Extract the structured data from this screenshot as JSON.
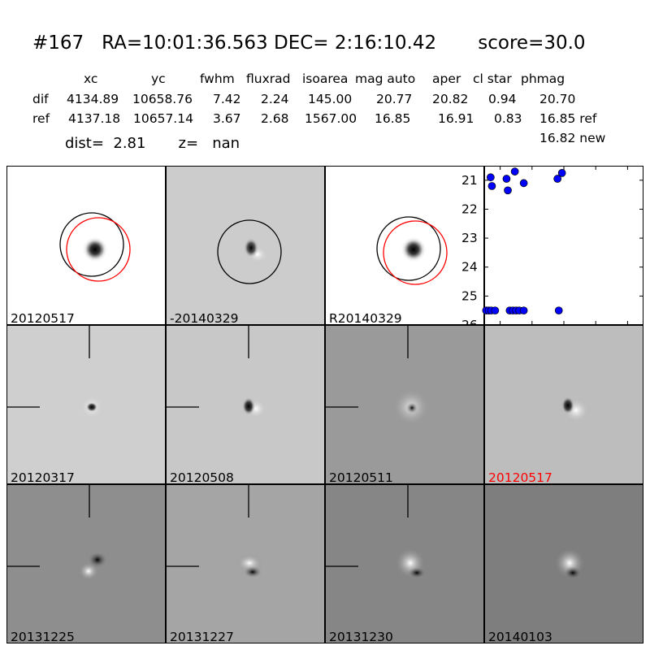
{
  "header": {
    "title": "#167   RA=10:01:36.563 DEC= 2:16:10.42       score=30.0",
    "columns": [
      "xc",
      "yc",
      "fwhm",
      "fluxrad",
      "isoarea",
      "mag auto",
      "aper",
      "cl star",
      "phmag"
    ],
    "rows": [
      {
        "label": "dif",
        "xc": "4134.89",
        "yc": "10658.76",
        "fwhm": "7.42",
        "fluxrad": "2.24",
        "isoarea": "145.00",
        "mag_auto": "20.77",
        "aper": "20.82",
        "cl_star": "0.94",
        "phmag": "20.70"
      },
      {
        "label": "ref",
        "xc": "4137.18",
        "yc": "10657.14",
        "fwhm": "3.67",
        "fluxrad": "2.68",
        "isoarea": "1567.00",
        "mag_auto": "16.85",
        "aper": "16.91",
        "cl_star": "0.83",
        "phmag": "16.85 ref"
      }
    ],
    "phmag_new": "16.82 new",
    "dist": "dist=  2.81       z=   nan"
  },
  "panels": [
    {
      "label": "20120517",
      "label_color": "#000000"
    },
    {
      "label": "-20140329",
      "label_color": "#000000"
    },
    {
      "label": "R20140329",
      "label_color": "#000000"
    },
    {
      "label": "20120317",
      "label_color": "#000000"
    },
    {
      "label": "20120508",
      "label_color": "#000000"
    },
    {
      "label": "20120511",
      "label_color": "#000000"
    },
    {
      "label": "20120517",
      "label_color": "#ff0000"
    },
    {
      "label": "20131225",
      "label_color": "#000000"
    },
    {
      "label": "20131227",
      "label_color": "#000000"
    },
    {
      "label": "20131230",
      "label_color": "#000000"
    },
    {
      "label": "20140103",
      "label_color": "#000000"
    }
  ],
  "chart_data": {
    "type": "scatter",
    "xlim": [
      -125,
      125
    ],
    "ylim": [
      26,
      20.5
    ],
    "xticks": [
      -100,
      -50,
      0,
      50,
      100
    ],
    "yticks": [
      21,
      22,
      23,
      24,
      25,
      26
    ],
    "color": "#0000ff",
    "points": [
      {
        "x": -115,
        "y": 20.9
      },
      {
        "x": -113,
        "y": 21.2
      },
      {
        "x": -90,
        "y": 20.95
      },
      {
        "x": -88,
        "y": 21.35
      },
      {
        "x": -77,
        "y": 20.7
      },
      {
        "x": -63,
        "y": 21.1
      },
      {
        "x": -10,
        "y": 20.95
      },
      {
        "x": -3,
        "y": 20.75
      },
      {
        "x": -122,
        "y": 25.5
      },
      {
        "x": -118,
        "y": 25.5
      },
      {
        "x": -114,
        "y": 25.5
      },
      {
        "x": -108,
        "y": 25.5
      },
      {
        "x": -85,
        "y": 25.5
      },
      {
        "x": -80,
        "y": 25.5
      },
      {
        "x": -75,
        "y": 25.5
      },
      {
        "x": -70,
        "y": 25.5
      },
      {
        "x": -63,
        "y": 25.5
      },
      {
        "x": -8,
        "y": 25.5
      }
    ]
  }
}
